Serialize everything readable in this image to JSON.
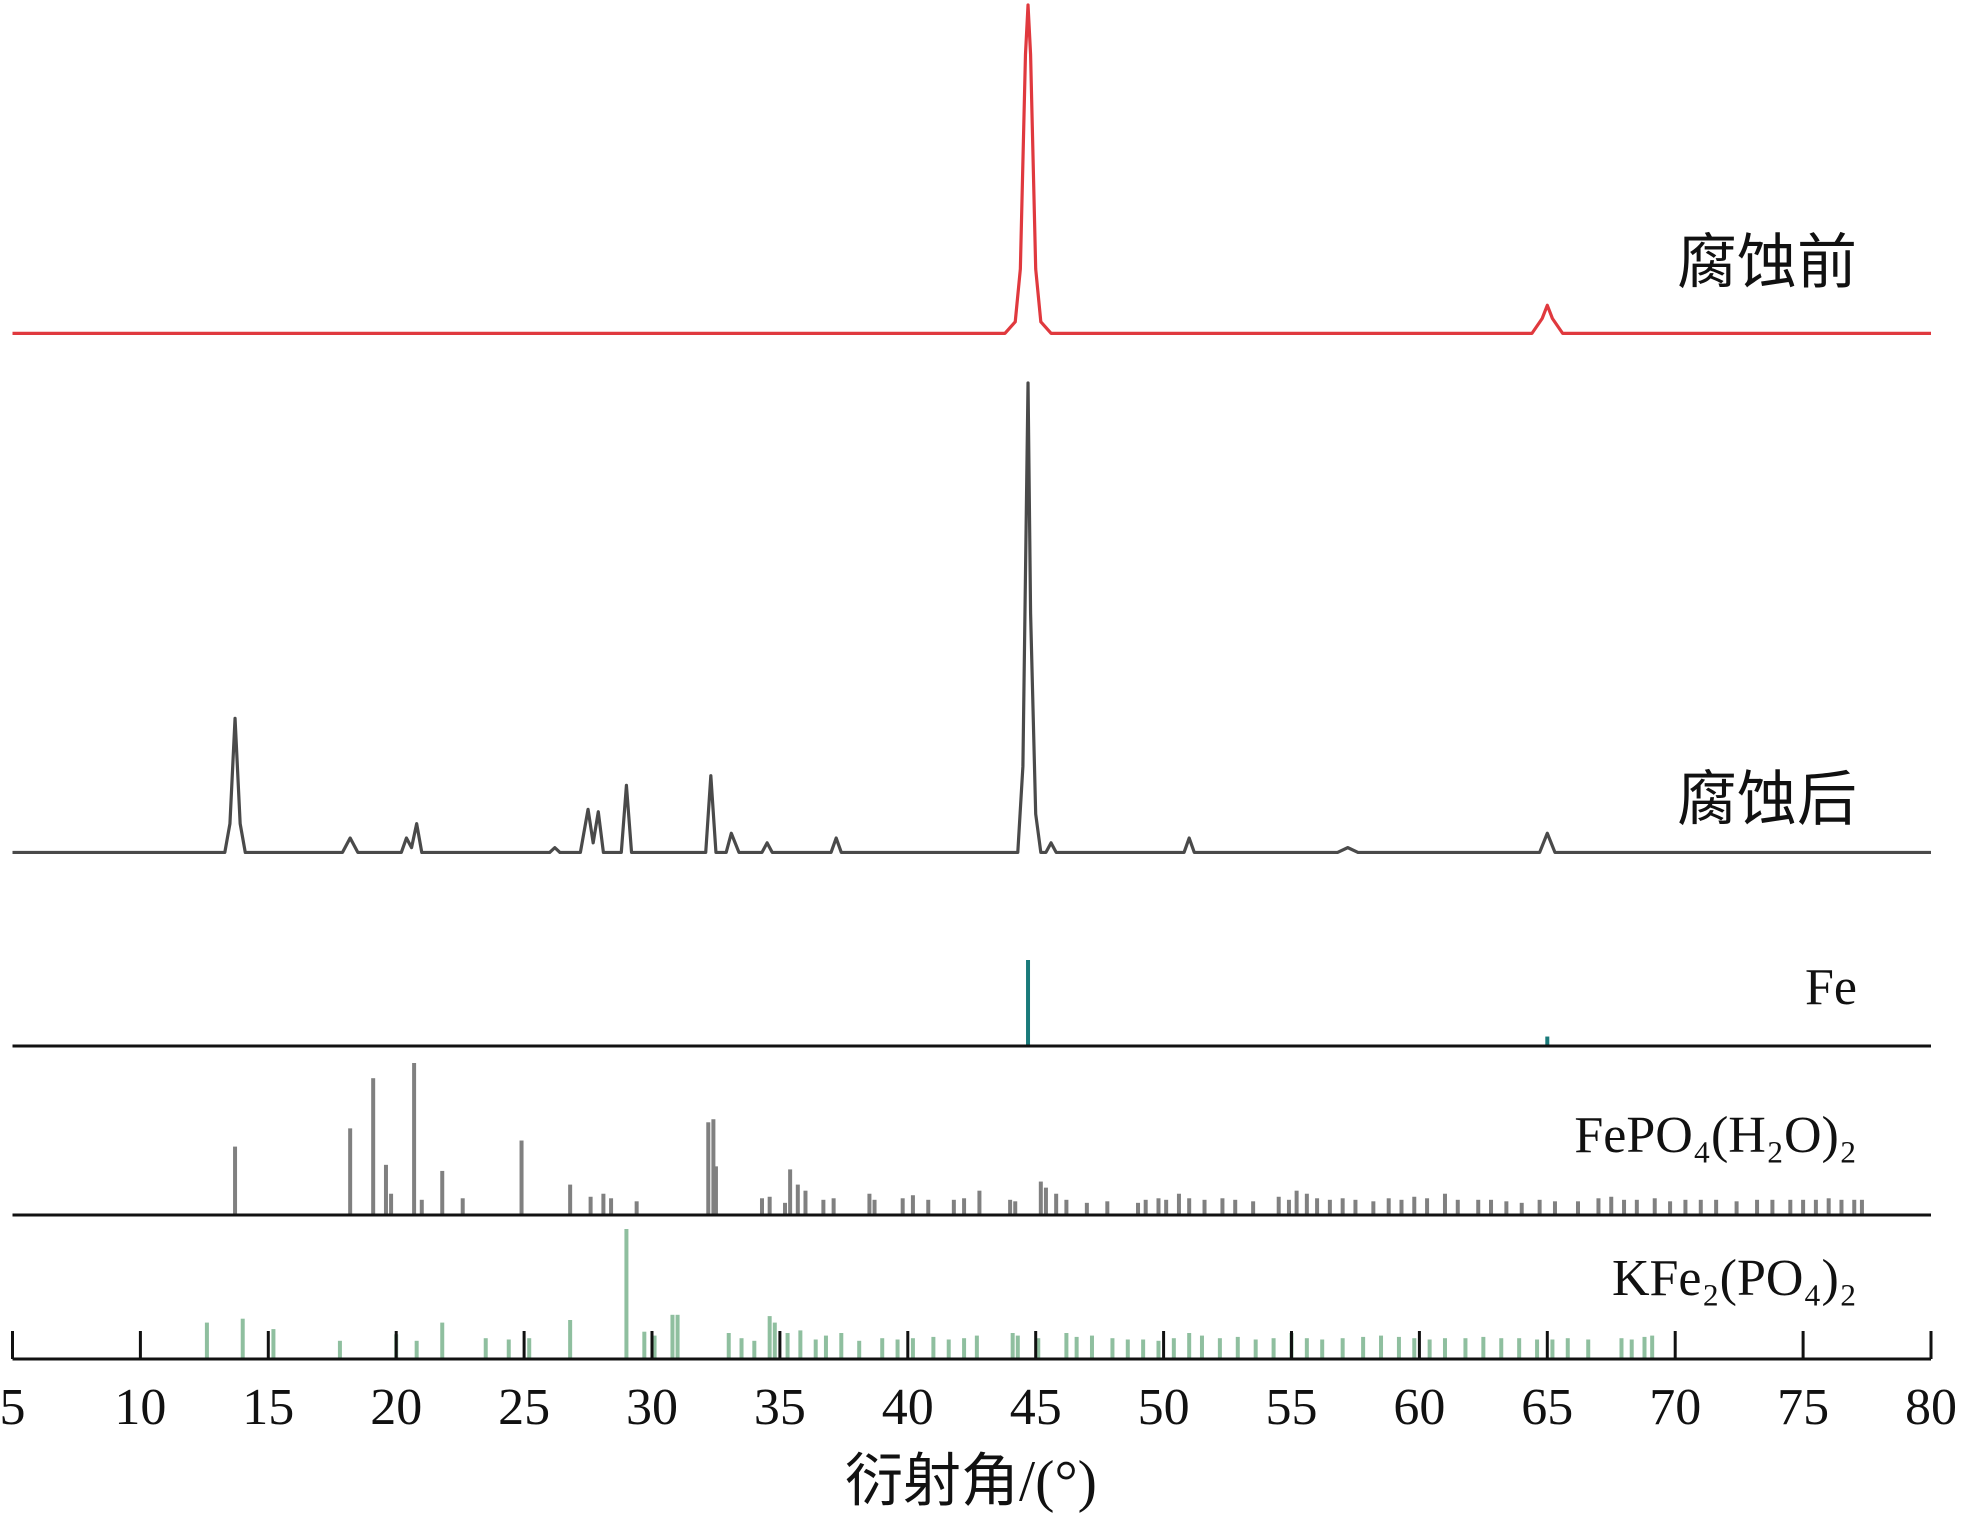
{
  "chart_data": [
    {
      "type": "line",
      "name": "腐蚀前",
      "color": "#e0393e",
      "ylim": [
        0,
        100
      ],
      "x": [
        5,
        43.8,
        44.2,
        44.4,
        44.6,
        44.7,
        44.8,
        45.0,
        45.2,
        45.6,
        64.4,
        64.8,
        65.0,
        65.2,
        65.6,
        80
      ],
      "values": [
        0.5,
        0.5,
        4,
        20,
        85,
        100,
        85,
        20,
        4,
        0.5,
        0.5,
        5,
        9,
        5,
        0.5,
        0.5
      ]
    },
    {
      "type": "line",
      "name": "腐蚀后",
      "color": "#4a4a4a",
      "ylim": [
        0,
        100
      ],
      "x": [
        5,
        13.3,
        13.5,
        13.7,
        13.9,
        14.1,
        17.9,
        18.2,
        18.5,
        20.2,
        20.4,
        20.6,
        20.8,
        21.0,
        26.0,
        26.2,
        26.4,
        27.2,
        27.5,
        27.7,
        27.9,
        28.1,
        28.8,
        29.0,
        29.2,
        32.1,
        32.3,
        32.5,
        32.9,
        33.1,
        33.4,
        34.3,
        34.5,
        34.7,
        37.0,
        37.2,
        37.4,
        44.3,
        44.5,
        44.7,
        44.8,
        45.0,
        45.2,
        45.4,
        45.6,
        45.8,
        50.8,
        51.0,
        51.2,
        56.8,
        57.2,
        57.6,
        64.7,
        65.0,
        65.3,
        80
      ],
      "values": [
        2,
        2,
        8,
        30,
        8,
        2,
        2,
        5,
        2,
        2,
        5,
        3,
        8,
        2,
        2,
        3,
        2,
        2,
        11,
        4,
        10.5,
        2,
        2,
        16,
        2,
        2,
        18,
        2,
        2,
        6,
        2,
        2,
        4,
        2,
        2,
        5,
        2,
        2,
        20,
        100,
        52,
        10,
        2,
        2,
        4,
        2,
        2,
        5,
        2,
        2,
        3,
        2,
        2,
        6,
        2,
        2
      ]
    },
    {
      "type": "stick",
      "name": "Fe",
      "color": "#1a7a7a",
      "ylim": [
        0,
        100
      ],
      "x": [
        44.7,
        65.0
      ],
      "values": [
        100,
        11
      ]
    },
    {
      "type": "stick",
      "name": "FePO₄(H₂O)₂",
      "color": "#808080",
      "ylim": [
        0,
        100
      ],
      "x": [
        13.7,
        18.2,
        19.1,
        19.6,
        19.8,
        20.7,
        21.0,
        21.8,
        22.6,
        24.9,
        26.8,
        27.6,
        28.1,
        28.4,
        29.4,
        32.2,
        32.4,
        32.5,
        34.3,
        34.6,
        35.2,
        35.4,
        35.7,
        36.0,
        36.7,
        37.1,
        38.5,
        38.7,
        39.8,
        40.2,
        40.8,
        41.8,
        42.2,
        42.8,
        44.0,
        44.2,
        45.2,
        45.4,
        45.8,
        46.2,
        47.0,
        47.8,
        49.0,
        49.3,
        49.8,
        50.1,
        50.6,
        51.0,
        51.6,
        52.3,
        52.8,
        53.5,
        54.5,
        54.9,
        55.2,
        55.6,
        56.0,
        56.5,
        57.0,
        57.5,
        58.2,
        58.8,
        59.3,
        59.8,
        60.3,
        61.0,
        61.5,
        62.3,
        62.8,
        63.4,
        64.0,
        64.7,
        65.3,
        66.2,
        67.0,
        67.5,
        68.0,
        68.5,
        69.2,
        69.8,
        70.4,
        71.0,
        71.6,
        72.4,
        73.2,
        73.8,
        74.5,
        75.0,
        75.5,
        76.0,
        76.5,
        77.0,
        77.3
      ],
      "values": [
        45,
        57,
        90,
        33,
        14,
        100,
        10,
        29,
        11,
        49,
        20,
        12,
        14,
        11,
        9,
        61,
        63,
        32,
        11,
        12,
        8,
        30,
        20,
        16,
        10,
        11,
        14,
        10,
        11,
        13,
        10,
        10,
        11,
        16,
        10,
        9,
        22,
        18,
        14,
        10,
        8,
        9,
        8,
        10,
        11,
        10,
        14,
        11,
        10,
        11,
        10,
        9,
        12,
        10,
        16,
        14,
        11,
        10,
        11,
        10,
        9,
        11,
        10,
        12,
        11,
        14,
        10,
        10,
        10,
        9,
        8,
        10,
        9,
        9,
        11,
        12,
        10,
        10,
        11,
        9,
        10,
        10,
        10,
        9,
        10,
        10,
        10,
        10,
        10,
        11,
        10,
        10,
        10
      ]
    },
    {
      "type": "stick",
      "name": "KFe₂(PO₄)₂",
      "color": "#8fbf9f",
      "ylim": [
        0,
        100
      ],
      "x": [
        12.6,
        14.0,
        15.2,
        17.8,
        20.0,
        20.8,
        21.8,
        23.5,
        24.4,
        25.2,
        26.8,
        29.0,
        29.7,
        30.1,
        30.8,
        31.0,
        33.0,
        33.5,
        34.0,
        34.6,
        34.8,
        35.3,
        35.8,
        36.4,
        36.8,
        37.4,
        38.1,
        39.0,
        39.6,
        40.2,
        41.0,
        41.6,
        42.2,
        42.7,
        44.1,
        44.3,
        45.1,
        46.2,
        46.6,
        47.2,
        48.0,
        48.6,
        49.2,
        49.8,
        50.4,
        51.0,
        51.5,
        52.2,
        52.9,
        53.6,
        54.3,
        55.0,
        55.6,
        56.2,
        57.0,
        57.8,
        58.5,
        59.2,
        59.8,
        60.4,
        61.0,
        61.8,
        62.5,
        63.2,
        63.9,
        64.6,
        65.2,
        65.8,
        66.6,
        67.9,
        68.3,
        68.8,
        69.1
      ],
      "values": [
        28,
        31,
        23,
        14,
        19,
        14,
        28,
        16,
        15,
        16,
        30,
        100,
        21,
        18,
        34,
        34,
        20,
        16,
        14,
        33,
        28,
        20,
        22,
        15,
        18,
        20,
        14,
        16,
        15,
        16,
        17,
        15,
        16,
        18,
        20,
        18,
        16,
        20,
        17,
        18,
        16,
        15,
        15,
        14,
        16,
        20,
        18,
        16,
        17,
        15,
        16,
        20,
        16,
        15,
        16,
        17,
        18,
        17,
        16,
        15,
        16,
        16,
        17,
        16,
        16,
        15,
        15,
        16,
        15,
        16,
        15,
        17,
        18
      ],
      "xlim": [
        5,
        80
      ],
      "xticks": [
        5,
        10,
        15,
        20,
        25,
        30,
        35,
        40,
        45,
        50,
        55,
        60,
        65,
        70,
        75,
        80
      ],
      "xlabel": "衍射角/(°)"
    }
  ]
}
